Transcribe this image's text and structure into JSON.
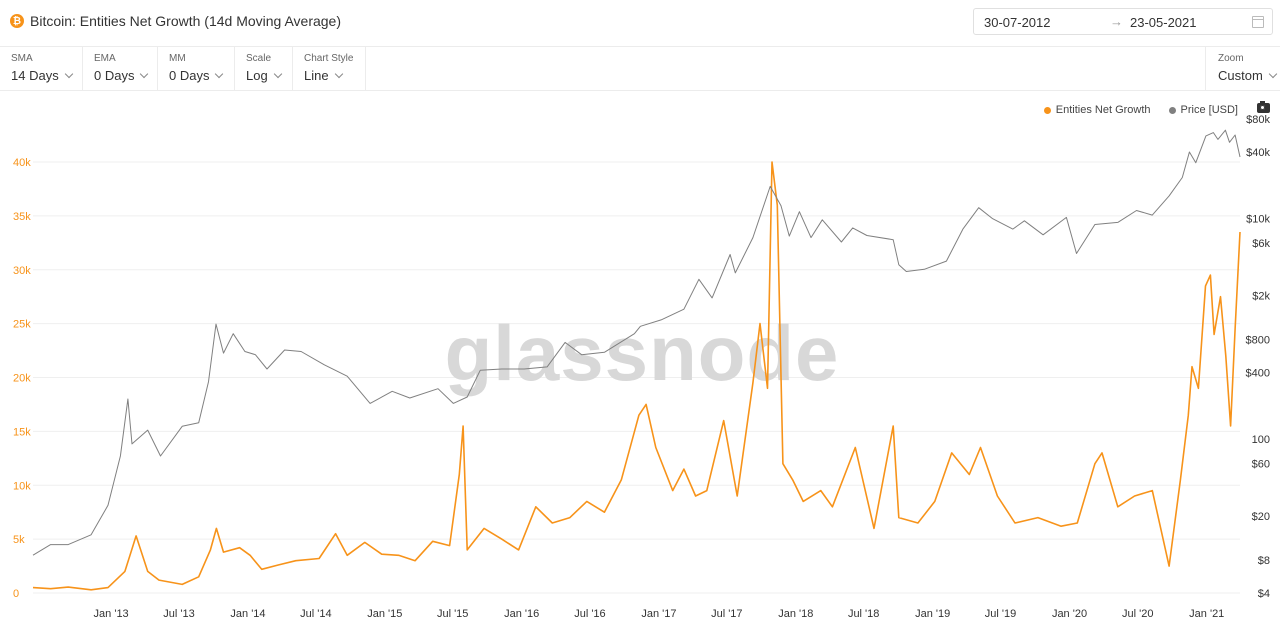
{
  "header": {
    "title": "Bitcoin: Entities Net Growth (14d Moving Average)",
    "asset_icon": "bitcoin-icon",
    "date_from": "30-07-2012",
    "date_arrow": "→",
    "date_to": "23-05-2021",
    "calendar_icon": "calendar-icon"
  },
  "toolbar": {
    "sma": {
      "label": "SMA",
      "value": "14 Days"
    },
    "ema": {
      "label": "EMA",
      "value": "0 Days"
    },
    "mm": {
      "label": "MM",
      "value": "0 Days"
    },
    "scale": {
      "label": "Scale",
      "value": "Log"
    },
    "style": {
      "label": "Chart Style",
      "value": "Line"
    },
    "zoom": {
      "label": "Zoom",
      "value": "Custom"
    }
  },
  "legend": {
    "series1": "Entities Net Growth",
    "series2": "Price [USD]",
    "camera_icon": "camera-icon"
  },
  "watermark": "glassnode",
  "colors": {
    "growth": "#f7931a",
    "price": "#808080",
    "grid": "#efefef"
  },
  "chart_data": {
    "type": "line",
    "x_range": [
      "2012-07-30",
      "2021-05-23"
    ],
    "x_tick_labels": [
      "Jan '13",
      "Jul '13",
      "Jan '14",
      "Jul '14",
      "Jan '15",
      "Jul '15",
      "Jan '16",
      "Jul '16",
      "Jan '17",
      "Jul '17",
      "Jan '18",
      "Jul '18",
      "Jan '19",
      "Jul '19",
      "Jan '20",
      "Jul '20",
      "Jan '21"
    ],
    "x_ticks": [
      "2013-01-01",
      "2013-07-01",
      "2014-01-01",
      "2014-07-01",
      "2015-01-01",
      "2015-07-01",
      "2016-01-01",
      "2016-07-01",
      "2017-01-01",
      "2017-07-01",
      "2018-01-01",
      "2018-07-01",
      "2019-01-01",
      "2019-07-01",
      "2020-01-01",
      "2020-07-01",
      "2021-01-01"
    ],
    "y_left": {
      "min": 0,
      "max": 40000,
      "tick_values": [
        0,
        5000,
        10000,
        15000,
        20000,
        25000,
        30000,
        35000,
        40000
      ],
      "tick_labels": [
        "0",
        "5k",
        "10k",
        "15k",
        "20k",
        "25k",
        "30k",
        "35k",
        "40k"
      ]
    },
    "y_right": {
      "scale": "log",
      "tick_values": [
        4,
        8,
        20,
        60,
        100,
        400,
        800,
        2000,
        6000,
        10000,
        40000,
        80000
      ],
      "tick_labels": [
        "$4",
        "$8",
        "$20",
        "$60",
        "100",
        "$400",
        "$800",
        "$2k",
        "$6k",
        "$10k",
        "$40k",
        "$80k"
      ]
    },
    "series": [
      {
        "name": "Entities Net Growth",
        "axis": "left",
        "points": [
          [
            "2012-07-30",
            500
          ],
          [
            "2012-09-15",
            400
          ],
          [
            "2012-11-01",
            550
          ],
          [
            "2013-01-01",
            300
          ],
          [
            "2013-02-15",
            500
          ],
          [
            "2013-04-01",
            2000
          ],
          [
            "2013-05-01",
            5300
          ],
          [
            "2013-06-01",
            2000
          ],
          [
            "2013-07-01",
            1200
          ],
          [
            "2013-09-01",
            800
          ],
          [
            "2013-10-15",
            1500
          ],
          [
            "2013-11-15",
            4000
          ],
          [
            "2013-12-01",
            6000
          ],
          [
            "2013-12-20",
            3800
          ],
          [
            "2014-02-01",
            4200
          ],
          [
            "2014-03-01",
            3500
          ],
          [
            "2014-04-01",
            2200
          ],
          [
            "2014-05-15",
            2600
          ],
          [
            "2014-07-01",
            3000
          ],
          [
            "2014-09-01",
            3200
          ],
          [
            "2014-10-15",
            5500
          ],
          [
            "2014-11-15",
            3500
          ],
          [
            "2015-01-01",
            4700
          ],
          [
            "2015-02-15",
            3600
          ],
          [
            "2015-04-01",
            3500
          ],
          [
            "2015-05-15",
            3000
          ],
          [
            "2015-07-01",
            4800
          ],
          [
            "2015-08-15",
            4400
          ],
          [
            "2015-09-10",
            11000
          ],
          [
            "2015-09-20",
            15500
          ],
          [
            "2015-10-01",
            4000
          ],
          [
            "2015-11-15",
            6000
          ],
          [
            "2016-01-01",
            5000
          ],
          [
            "2016-02-15",
            4000
          ],
          [
            "2016-04-01",
            8000
          ],
          [
            "2016-05-15",
            6500
          ],
          [
            "2016-07-01",
            7000
          ],
          [
            "2016-08-15",
            8500
          ],
          [
            "2016-10-01",
            7500
          ],
          [
            "2016-11-15",
            10500
          ],
          [
            "2017-01-01",
            16500
          ],
          [
            "2017-01-20",
            17500
          ],
          [
            "2017-02-15",
            13500
          ],
          [
            "2017-04-01",
            9500
          ],
          [
            "2017-05-01",
            11500
          ],
          [
            "2017-06-01",
            9000
          ],
          [
            "2017-07-01",
            9500
          ],
          [
            "2017-08-15",
            16000
          ],
          [
            "2017-09-20",
            9000
          ],
          [
            "2017-11-01",
            19500
          ],
          [
            "2017-11-20",
            25000
          ],
          [
            "2017-12-10",
            19000
          ],
          [
            "2017-12-22",
            40000
          ],
          [
            "2018-01-05",
            36000
          ],
          [
            "2018-01-20",
            12000
          ],
          [
            "2018-02-15",
            10500
          ],
          [
            "2018-03-15",
            8500
          ],
          [
            "2018-05-01",
            9500
          ],
          [
            "2018-06-01",
            8000
          ],
          [
            "2018-08-01",
            13500
          ],
          [
            "2018-09-20",
            6000
          ],
          [
            "2018-11-10",
            15500
          ],
          [
            "2018-11-25",
            7000
          ],
          [
            "2019-01-15",
            6500
          ],
          [
            "2019-03-01",
            8500
          ],
          [
            "2019-04-15",
            13000
          ],
          [
            "2019-06-01",
            11000
          ],
          [
            "2019-07-01",
            13500
          ],
          [
            "2019-08-15",
            9000
          ],
          [
            "2019-10-01",
            6500
          ],
          [
            "2019-12-01",
            7000
          ],
          [
            "2020-02-01",
            6200
          ],
          [
            "2020-03-15",
            6500
          ],
          [
            "2020-05-01",
            12000
          ],
          [
            "2020-05-20",
            13000
          ],
          [
            "2020-07-01",
            8000
          ],
          [
            "2020-08-15",
            9000
          ],
          [
            "2020-10-01",
            9500
          ],
          [
            "2020-11-15",
            2500
          ],
          [
            "2020-12-15",
            10500
          ],
          [
            "2021-01-05",
            16500
          ],
          [
            "2021-01-15",
            21000
          ],
          [
            "2021-02-01",
            19000
          ],
          [
            "2021-02-20",
            28500
          ],
          [
            "2021-03-05",
            29500
          ],
          [
            "2021-03-15",
            24000
          ],
          [
            "2021-04-01",
            27500
          ],
          [
            "2021-04-15",
            22000
          ],
          [
            "2021-04-28",
            15500
          ],
          [
            "2021-05-10",
            24500
          ],
          [
            "2021-05-23",
            33500
          ]
        ]
      },
      {
        "name": "Price [USD]",
        "axis": "right",
        "points": [
          [
            "2012-07-30",
            8.8
          ],
          [
            "2012-09-15",
            11
          ],
          [
            "2012-11-01",
            11
          ],
          [
            "2013-01-01",
            13.5
          ],
          [
            "2013-02-15",
            25
          ],
          [
            "2013-03-20",
            70
          ],
          [
            "2013-04-09",
            230
          ],
          [
            "2013-04-20",
            90
          ],
          [
            "2013-06-01",
            120
          ],
          [
            "2013-07-05",
            70
          ],
          [
            "2013-09-01",
            130
          ],
          [
            "2013-10-15",
            140
          ],
          [
            "2013-11-10",
            330
          ],
          [
            "2013-11-30",
            1100
          ],
          [
            "2013-12-20",
            600
          ],
          [
            "2014-01-15",
            900
          ],
          [
            "2014-02-15",
            620
          ],
          [
            "2014-03-15",
            580
          ],
          [
            "2014-04-15",
            430
          ],
          [
            "2014-06-01",
            640
          ],
          [
            "2014-07-15",
            620
          ],
          [
            "2014-09-15",
            470
          ],
          [
            "2014-11-15",
            370
          ],
          [
            "2015-01-15",
            210
          ],
          [
            "2015-03-15",
            270
          ],
          [
            "2015-05-01",
            235
          ],
          [
            "2015-07-15",
            285
          ],
          [
            "2015-08-25",
            210
          ],
          [
            "2015-10-01",
            240
          ],
          [
            "2015-11-05",
            420
          ],
          [
            "2016-01-01",
            430
          ],
          [
            "2016-03-01",
            430
          ],
          [
            "2016-05-01",
            450
          ],
          [
            "2016-06-18",
            750
          ],
          [
            "2016-08-01",
            580
          ],
          [
            "2016-10-01",
            610
          ],
          [
            "2016-12-20",
            900
          ],
          [
            "2017-01-05",
            1050
          ],
          [
            "2017-03-01",
            1200
          ],
          [
            "2017-05-01",
            1500
          ],
          [
            "2017-06-10",
            2800
          ],
          [
            "2017-07-15",
            1900
          ],
          [
            "2017-09-01",
            4700
          ],
          [
            "2017-09-15",
            3200
          ],
          [
            "2017-11-01",
            6700
          ],
          [
            "2017-12-17",
            19500
          ],
          [
            "2018-01-15",
            13000
          ],
          [
            "2018-02-06",
            6900
          ],
          [
            "2018-03-05",
            11500
          ],
          [
            "2018-04-05",
            6700
          ],
          [
            "2018-05-05",
            9700
          ],
          [
            "2018-06-25",
            6100
          ],
          [
            "2018-07-25",
            8200
          ],
          [
            "2018-09-01",
            7000
          ],
          [
            "2018-11-10",
            6400
          ],
          [
            "2018-11-25",
            3800
          ],
          [
            "2018-12-15",
            3300
          ],
          [
            "2019-02-01",
            3450
          ],
          [
            "2019-04-01",
            4100
          ],
          [
            "2019-05-15",
            8000
          ],
          [
            "2019-06-26",
            12500
          ],
          [
            "2019-08-01",
            10000
          ],
          [
            "2019-09-25",
            8000
          ],
          [
            "2019-10-26",
            9500
          ],
          [
            "2019-12-15",
            7100
          ],
          [
            "2020-02-15",
            10200
          ],
          [
            "2020-03-13",
            4800
          ],
          [
            "2020-05-01",
            8800
          ],
          [
            "2020-07-01",
            9200
          ],
          [
            "2020-08-20",
            11800
          ],
          [
            "2020-10-01",
            10700
          ],
          [
            "2020-11-15",
            16000
          ],
          [
            "2020-12-20",
            23500
          ],
          [
            "2021-01-08",
            40000
          ],
          [
            "2021-01-25",
            32000
          ],
          [
            "2021-02-21",
            56000
          ],
          [
            "2021-03-13",
            60000
          ],
          [
            "2021-03-25",
            52000
          ],
          [
            "2021-04-14",
            63000
          ],
          [
            "2021-04-25",
            49000
          ],
          [
            "2021-05-10",
            57000
          ],
          [
            "2021-05-23",
            36000
          ]
        ]
      }
    ],
    "grid": true,
    "legend_position": "top-right"
  }
}
